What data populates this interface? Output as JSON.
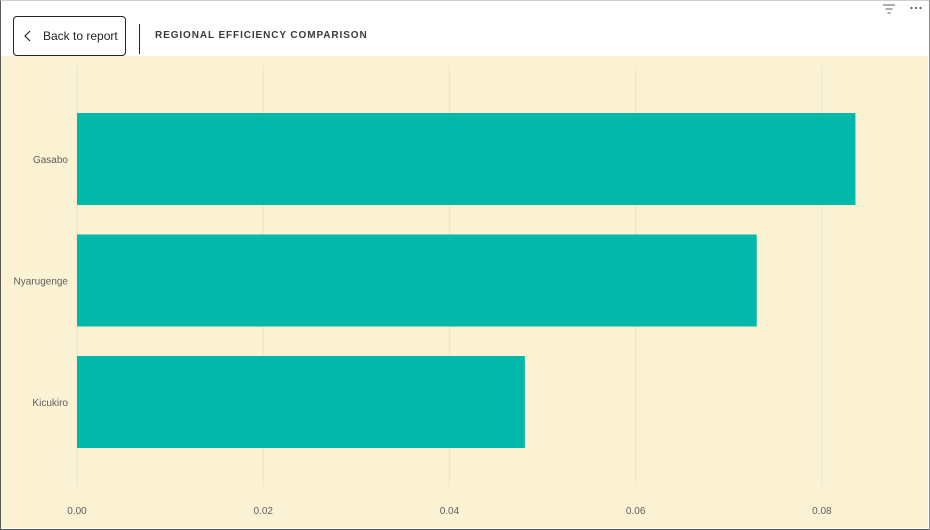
{
  "header": {
    "back_label": "Back to report",
    "title": "REGIONAL EFFICIENCY COMPARISON",
    "icons": [
      "chevron-left-icon",
      "filter-icon",
      "more-options-icon"
    ]
  },
  "colors": {
    "bar": "#01b8aa",
    "background": "#faf2d2",
    "gridline": "#ece4c8",
    "label": "#605e5c"
  },
  "chart_data": {
    "type": "bar",
    "orientation": "horizontal",
    "categories": [
      "Gasabo",
      "Nyarugenge",
      "Kicukiro"
    ],
    "values": [
      0.0836,
      0.073,
      0.0481
    ],
    "xlim": [
      0,
      0.09
    ],
    "xticks": [
      "0.00",
      "0.02",
      "0.04",
      "0.06",
      "0.08"
    ],
    "xtick_values": [
      0,
      0.02,
      0.04,
      0.06,
      0.08
    ],
    "grid": true,
    "title": "REGIONAL EFFICIENCY COMPARISON",
    "xlabel": "",
    "ylabel": ""
  }
}
